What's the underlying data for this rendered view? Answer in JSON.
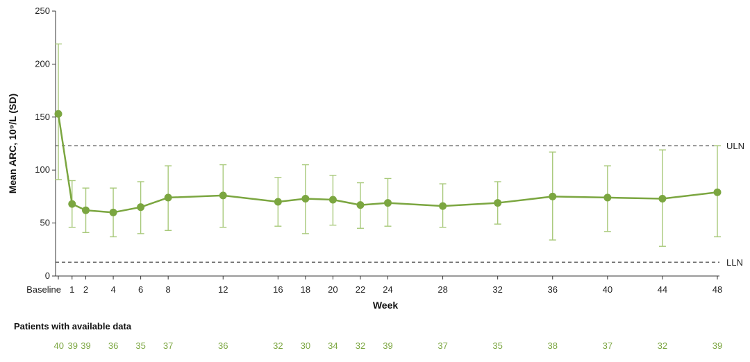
{
  "chart_data": {
    "type": "line",
    "xlabel": "Week",
    "ylabel": "Mean ARC, 10⁹/L (SD)",
    "ylim": [
      0,
      250
    ],
    "y_ticks": [
      0,
      50,
      100,
      150,
      200,
      250
    ],
    "x_tick_labels": [
      "Baseline",
      "1",
      "2",
      "4",
      "6",
      "8",
      "12",
      "16",
      "18",
      "20",
      "22",
      "24",
      "28",
      "32",
      "36",
      "40",
      "44",
      "48"
    ],
    "x_weeks": [
      0,
      1,
      2,
      4,
      6,
      8,
      12,
      16,
      18,
      20,
      22,
      24,
      28,
      32,
      36,
      40,
      44,
      48
    ],
    "series": [
      {
        "values": [
          153,
          68,
          62,
          60,
          65,
          74,
          76,
          70,
          73,
          72,
          67,
          69,
          66,
          69,
          75,
          74,
          73,
          79
        ],
        "upper": [
          219,
          90,
          83,
          83,
          89,
          104,
          105,
          93,
          105,
          95,
          88,
          92,
          87,
          89,
          117,
          104,
          119,
          123
        ],
        "lower": [
          91,
          46,
          41,
          37,
          40,
          43,
          46,
          47,
          40,
          48,
          45,
          47,
          46,
          49,
          34,
          42,
          28,
          37
        ],
        "color": "#7ba640",
        "error_color": "#a8c97a"
      }
    ],
    "reference_lines": [
      {
        "label": "ULN",
        "value": 123
      },
      {
        "label": "LLN",
        "value": 13
      }
    ],
    "patients": {
      "title": "Patients with available data",
      "counts": [
        "40",
        "39",
        "39",
        "36",
        "35",
        "37",
        "36",
        "32",
        "30",
        "34",
        "32",
        "39",
        "37",
        "35",
        "38",
        "37",
        "32",
        "39"
      ]
    },
    "grid": false
  }
}
